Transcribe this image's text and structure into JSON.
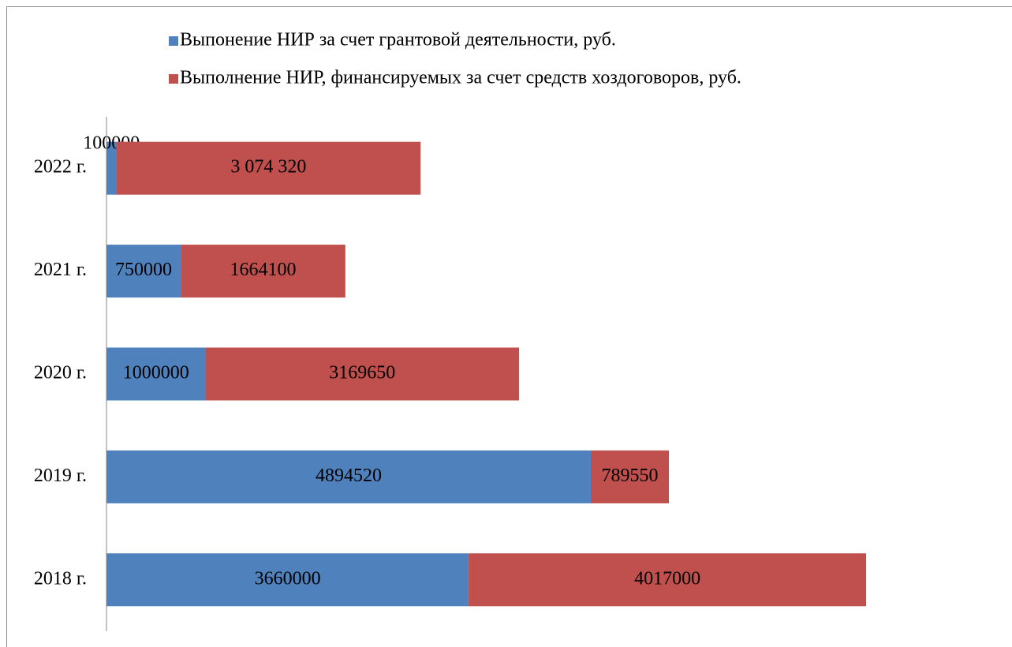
{
  "chart_data": {
    "type": "stacked-bar",
    "orientation": "horizontal",
    "categories": [
      "2018 г.",
      "2019 г.",
      "2020 г.",
      "2021 г.",
      "2022 г."
    ],
    "series": [
      {
        "name": "Выпонение НИР за счет грантовой деятельности, руб.",
        "color": "#4f81bd",
        "values": [
          3660000,
          4894520,
          1000000,
          750000,
          100000
        ]
      },
      {
        "name": "Выполнение НИР, финансируемых за счет средств хоздоговоров, руб.",
        "color": "#c0504d",
        "values": [
          4017000,
          789550,
          3169650,
          1664100,
          3074320
        ],
        "value_labels": [
          "4017000",
          "789550",
          "3169650",
          "1664100",
          "3 074 320"
        ]
      }
    ],
    "xlim": [
      0,
      9000000
    ],
    "legend": "top"
  }
}
